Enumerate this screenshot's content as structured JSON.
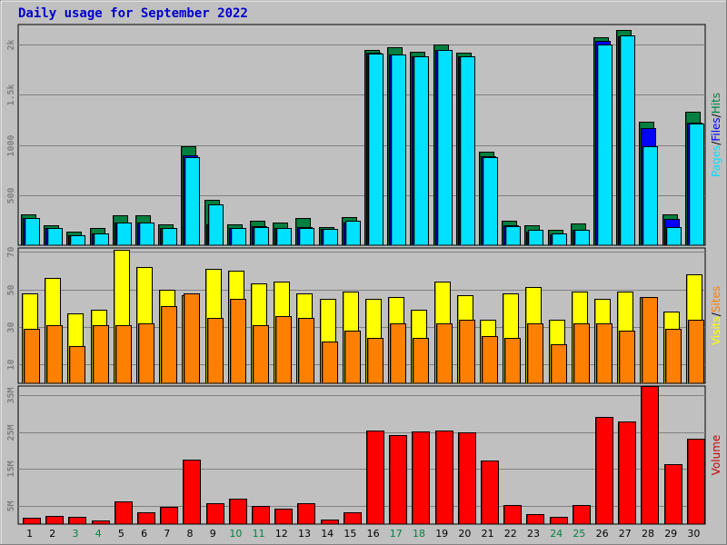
{
  "chart_data": {
    "type": "bar",
    "title": "Daily usage for September 2022",
    "categories": [
      "1",
      "2",
      "3",
      "4",
      "5",
      "6",
      "7",
      "8",
      "9",
      "10",
      "11",
      "12",
      "13",
      "14",
      "15",
      "16",
      "17",
      "18",
      "19",
      "20",
      "21",
      "22",
      "23",
      "24",
      "25",
      "26",
      "27",
      "28",
      "29",
      "30"
    ],
    "weekend_days": [
      "3",
      "4",
      "10",
      "11",
      "17",
      "18",
      "24",
      "25"
    ],
    "colors": {
      "hits": "#008040",
      "files": "#0000ff",
      "pages": "#00e0ff",
      "visits": "#ffff00",
      "sites": "#ff8000",
      "volume": "#ff0000",
      "title": "#0000cc",
      "weekday_label": "#000000",
      "weekend_label": "#008040",
      "background": "#c0c0c0",
      "gridline": "#808080"
    },
    "panels": [
      {
        "id": "hits-files-pages",
        "side_label": [
          "Pages",
          "/",
          "Files",
          "/",
          "Hits"
        ],
        "side_label_colors": [
          "#00e0ff",
          "#000000",
          "#0000ff",
          "#000000",
          "#008040"
        ],
        "ylim": [
          0,
          2200
        ],
        "ticks": [
          {
            "v": 500,
            "label": "500"
          },
          {
            "v": 1000,
            "label": "1000"
          },
          {
            "v": 1500,
            "label": "1.5k"
          },
          {
            "v": 2000,
            "label": "2k"
          }
        ],
        "series": [
          {
            "name": "Hits",
            "values": [
              310,
              200,
              140,
              170,
              300,
              300,
              210,
              990,
              450,
              210,
              240,
              230,
              270,
              180,
              280,
              1950,
              1970,
              1930,
              2000,
              1920,
              930,
              240,
              200,
              150,
              220,
              2070,
              2150,
              1230,
              310,
              1330
            ]
          },
          {
            "name": "Files",
            "values": [
              270,
              170,
              100,
              120,
              230,
              230,
              170,
              900,
              210,
              170,
              190,
              170,
              180,
              160,
              230,
              1920,
              1900,
              1880,
              1950,
              1880,
              890,
              200,
              140,
              110,
              150,
              2040,
              2080,
              1170,
              260,
              1220
            ]
          },
          {
            "name": "Pages",
            "values": [
              270,
              170,
              100,
              120,
              230,
              230,
              170,
              880,
              410,
              170,
              180,
              170,
              170,
              160,
              240,
              1910,
              1900,
              1880,
              1950,
              1880,
              880,
              190,
              150,
              120,
              150,
              2000,
              2090,
              990,
              180,
              1210
            ]
          }
        ]
      },
      {
        "id": "visits-sites",
        "side_label": [
          "Visits",
          "/",
          "Sites"
        ],
        "side_label_colors": [
          "#ffff00",
          "#000000",
          "#ff8000"
        ],
        "ylim": [
          0,
          72
        ],
        "ticks": [
          {
            "v": 10,
            "label": "10"
          },
          {
            "v": 30,
            "label": "30"
          },
          {
            "v": 50,
            "label": "50"
          },
          {
            "v": 70,
            "label": "70"
          }
        ],
        "series": [
          {
            "name": "Visits",
            "values": [
              48,
              56,
              37,
              39,
              71,
              62,
              50,
              47,
              61,
              60,
              53,
              54,
              48,
              45,
              49,
              45,
              46,
              39,
              54,
              47,
              34,
              48,
              51,
              34,
              49,
              45,
              49,
              46,
              38,
              58
            ]
          },
          {
            "name": "Sites",
            "values": [
              29,
              31,
              20,
              31,
              31,
              32,
              41,
              48,
              35,
              45,
              31,
              36,
              35,
              22,
              28,
              24,
              32,
              24,
              32,
              34,
              25,
              24,
              32,
              21,
              32,
              32,
              28,
              46,
              29,
              34
            ]
          }
        ]
      },
      {
        "id": "volume",
        "side_label": [
          "Volume"
        ],
        "side_label_colors": [
          "#cc0000"
        ],
        "ylim": [
          0,
          37500000
        ],
        "ticks": [
          {
            "v": 5000000,
            "label": "5M"
          },
          {
            "v": 15000000,
            "label": "15M"
          },
          {
            "v": 25000000,
            "label": "25M"
          },
          {
            "v": 35000000,
            "label": "35M"
          }
        ],
        "series": [
          {
            "name": "Volume",
            "values": [
              1700000,
              2200000,
              2000000,
              1000000,
              6200000,
              3100000,
              4800000,
              17400000,
              5600000,
              7000000,
              5000000,
              4200000,
              5600000,
              1300000,
              3100000,
              25500000,
              24200000,
              25200000,
              25500000,
              25000000,
              17200000,
              5300000,
              2700000,
              2000000,
              5100000,
              29000000,
              27800000,
              37500000,
              16200000,
              23100000
            ]
          }
        ]
      }
    ]
  }
}
